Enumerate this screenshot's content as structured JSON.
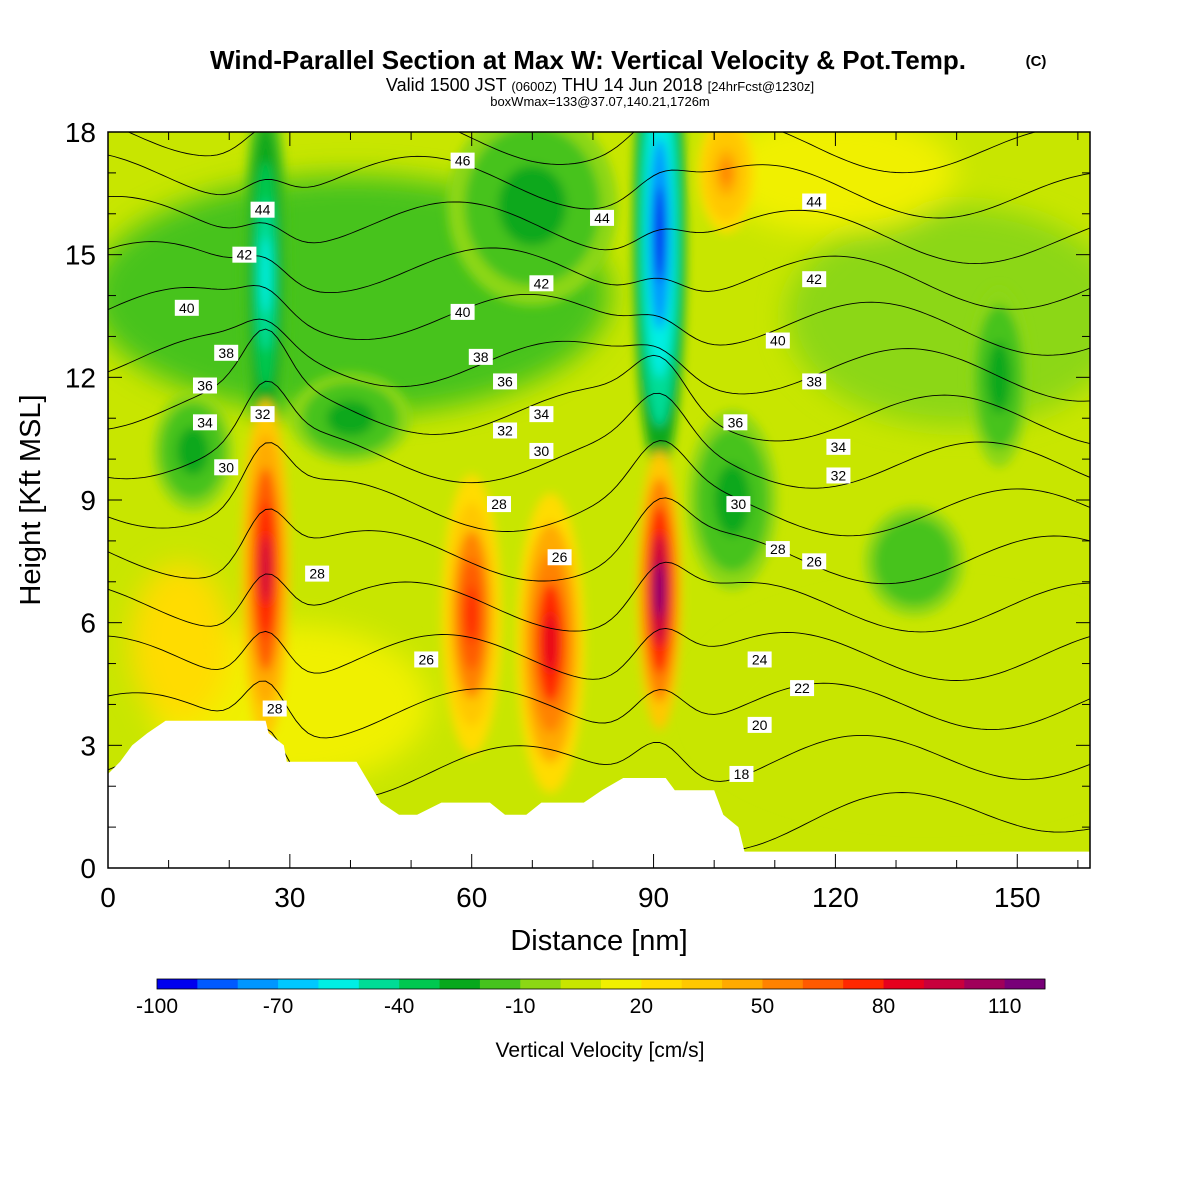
{
  "header": {
    "title": "Wind-Parallel Section at Max W: Vertical Velocity & Pot.Temp.",
    "title_mark": "(C)",
    "valid_prefix": "Valid 1500 JST",
    "valid_utc": "(0600Z)",
    "valid_date": "THU 14 Jun 2018",
    "forecast": "[24hrFcst@1230z]",
    "box_info": "boxWmax=133@37.07,140.21,1726m"
  },
  "chart_data": {
    "type": "heatmap",
    "xlabel": "Distance [nm]",
    "ylabel": "Height [Kft MSL]",
    "xlim": [
      0,
      162
    ],
    "ylim": [
      0,
      18
    ],
    "x_ticks": [
      0,
      30,
      60,
      90,
      120,
      150
    ],
    "y_ticks": [
      0,
      3,
      6,
      9,
      12,
      15,
      18
    ],
    "colorbar": {
      "label": "Vertical Velocity [cm/s]",
      "tick_labels": [
        -100,
        -70,
        -40,
        -10,
        20,
        50,
        80,
        110
      ],
      "levels": [
        -100,
        -90,
        -80,
        -70,
        -60,
        -50,
        -40,
        -30,
        -20,
        -10,
        0,
        10,
        20,
        30,
        40,
        50,
        60,
        70,
        80,
        90,
        100,
        110,
        120
      ],
      "colors": [
        "#0000ee",
        "#005aff",
        "#0096ff",
        "#00c8ff",
        "#00eee4",
        "#00dc96",
        "#00c850",
        "#08a81c",
        "#46c31e",
        "#8cd714",
        "#c8e600",
        "#f0f000",
        "#ffdc00",
        "#ffc800",
        "#ffaa00",
        "#ff8200",
        "#ff5a00",
        "#ff2800",
        "#e6001e",
        "#c8003c",
        "#a0005a",
        "#780078"
      ]
    },
    "vertical_velocity_features": [
      {
        "x": 26,
        "y": 7.5,
        "value": 90
      },
      {
        "x": 60,
        "y": 6.3,
        "value": 75
      },
      {
        "x": 73,
        "y": 5.5,
        "value": 85
      },
      {
        "x": 91,
        "y": 6.8,
        "value": 110
      },
      {
        "x": 102,
        "y": 17,
        "value": 55
      },
      {
        "x": 26,
        "y": 14,
        "value": -60
      },
      {
        "x": 91,
        "y": 16,
        "value": -95
      },
      {
        "x": 70,
        "y": 16,
        "value": -30
      },
      {
        "x": 14,
        "y": 10,
        "value": -30
      },
      {
        "x": 103,
        "y": 9,
        "value": -25
      },
      {
        "x": 147,
        "y": 12,
        "value": -25
      },
      {
        "x": 133,
        "y": 7.5,
        "value": -20
      }
    ],
    "theta_contour_labels": [
      {
        "value": "46",
        "x": 58.5,
        "y": 17.3
      },
      {
        "value": "44",
        "x": 25.5,
        "y": 16.1
      },
      {
        "value": "44",
        "x": 81.5,
        "y": 15.9
      },
      {
        "value": "44",
        "x": 116.5,
        "y": 16.3
      },
      {
        "value": "42",
        "x": 22.5,
        "y": 15.0
      },
      {
        "value": "42",
        "x": 71.5,
        "y": 14.3
      },
      {
        "value": "42",
        "x": 116.5,
        "y": 14.4
      },
      {
        "value": "40",
        "x": 13,
        "y": 13.7
      },
      {
        "value": "40",
        "x": 58.5,
        "y": 13.6
      },
      {
        "value": "40",
        "x": 110.5,
        "y": 12.9
      },
      {
        "value": "38",
        "x": 19.5,
        "y": 12.6
      },
      {
        "value": "38",
        "x": 61.5,
        "y": 12.5
      },
      {
        "value": "38",
        "x": 116.5,
        "y": 11.9
      },
      {
        "value": "36",
        "x": 16,
        "y": 11.8
      },
      {
        "value": "36",
        "x": 65.5,
        "y": 11.9
      },
      {
        "value": "36",
        "x": 103.5,
        "y": 10.9
      },
      {
        "value": "34",
        "x": 16,
        "y": 10.9
      },
      {
        "value": "34",
        "x": 71.5,
        "y": 11.1
      },
      {
        "value": "34",
        "x": 120.5,
        "y": 10.3
      },
      {
        "value": "32",
        "x": 25.5,
        "y": 11.1
      },
      {
        "value": "32",
        "x": 65.5,
        "y": 10.7
      },
      {
        "value": "32",
        "x": 120.5,
        "y": 9.6
      },
      {
        "value": "30",
        "x": 19.5,
        "y": 9.8
      },
      {
        "value": "30",
        "x": 71.5,
        "y": 10.2
      },
      {
        "value": "30",
        "x": 104,
        "y": 8.9
      },
      {
        "value": "28",
        "x": 34.5,
        "y": 7.2
      },
      {
        "value": "28",
        "x": 64.5,
        "y": 8.9
      },
      {
        "value": "28",
        "x": 110.5,
        "y": 7.8
      },
      {
        "value": "28",
        "x": 27.5,
        "y": 3.9
      },
      {
        "value": "26",
        "x": 52.5,
        "y": 5.1
      },
      {
        "value": "26",
        "x": 74.5,
        "y": 7.6
      },
      {
        "value": "26",
        "x": 116.5,
        "y": 7.5
      },
      {
        "value": "24",
        "x": 107.5,
        "y": 5.1
      },
      {
        "value": "22",
        "x": 114.5,
        "y": 4.4
      },
      {
        "value": "20",
        "x": 107.5,
        "y": 3.5
      },
      {
        "value": "18",
        "x": 104.5,
        "y": 2.3
      }
    ],
    "terrain_profile": [
      [
        0,
        2.3
      ],
      [
        2,
        2.6
      ],
      [
        4,
        3.0
      ],
      [
        6.5,
        3.3
      ],
      [
        9.5,
        3.6
      ],
      [
        17,
        3.6
      ],
      [
        26,
        3.6
      ],
      [
        26.5,
        3.3
      ],
      [
        29,
        3.0
      ],
      [
        29.5,
        2.6
      ],
      [
        41,
        2.6
      ],
      [
        45,
        1.6
      ],
      [
        48,
        1.3
      ],
      [
        51,
        1.3
      ],
      [
        55,
        1.6
      ],
      [
        63,
        1.6
      ],
      [
        65.5,
        1.3
      ],
      [
        69,
        1.3
      ],
      [
        71.5,
        1.6
      ],
      [
        78.5,
        1.6
      ],
      [
        81.5,
        1.9
      ],
      [
        85,
        2.2
      ],
      [
        89,
        2.2
      ],
      [
        92,
        2.2
      ],
      [
        93.5,
        1.9
      ],
      [
        100,
        1.9
      ],
      [
        101.5,
        1.3
      ],
      [
        104,
        1.0
      ],
      [
        105,
        0.4
      ],
      [
        162,
        0.4
      ]
    ]
  }
}
